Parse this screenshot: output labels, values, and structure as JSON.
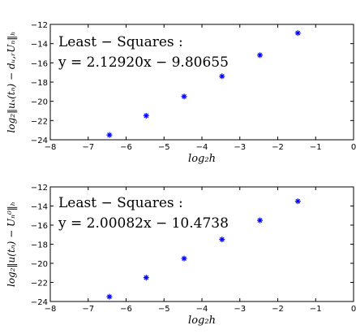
{
  "chart_data": [
    {
      "type": "scatter",
      "xlabel": "log₂h",
      "ylabel": "log₂‖uₓ(tₙ) − dᵤ,ᵣUₙ‖ₕ",
      "xlim": [
        -8,
        0
      ],
      "ylim": [
        -24,
        -12
      ],
      "x_ticks": [
        -8,
        -7,
        -6,
        -5,
        -4,
        -3,
        -2,
        -1,
        0
      ],
      "y_ticks": [
        -24,
        -22,
        -20,
        -18,
        -16,
        -14,
        -12
      ],
      "x_tick_labels": [
        "−8",
        "−7",
        "−6",
        "−5",
        "−4",
        "−3",
        "−2",
        "−1",
        "0"
      ],
      "y_tick_labels": [
        "−24",
        "−22",
        "−20",
        "−18",
        "−16",
        "−14",
        "−12"
      ],
      "grid": false,
      "marker_color": "#0000ff",
      "annotation": [
        "Least − Squares :",
        "y = 2.12920x − 9.80655"
      ],
      "series": [
        {
          "x": [
            -6.44,
            -5.47,
            -4.47,
            -3.47,
            -2.47,
            -1.47
          ],
          "y": [
            -23.5,
            -21.5,
            -19.5,
            -17.4,
            -15.2,
            -12.9
          ]
        }
      ]
    },
    {
      "type": "scatter",
      "xlabel": "log₂h",
      "ylabel": "log₂‖u(tₙ) − Uₙ⁰‖ₕ",
      "xlim": [
        -8,
        0
      ],
      "ylim": [
        -24,
        -12
      ],
      "x_ticks": [
        -8,
        -7,
        -6,
        -5,
        -4,
        -3,
        -2,
        -1,
        0
      ],
      "y_ticks": [
        -24,
        -22,
        -20,
        -18,
        -16,
        -14,
        -12
      ],
      "x_tick_labels": [
        "−8",
        "−7",
        "−6",
        "−5",
        "−4",
        "−3",
        "−2",
        "−1",
        "0"
      ],
      "y_tick_labels": [
        "−24",
        "−22",
        "−20",
        "−18",
        "−16",
        "−14",
        "−12"
      ],
      "grid": false,
      "marker_color": "#0000ff",
      "annotation": [
        "Least − Squares :",
        "y = 2.00082x − 10.4738"
      ],
      "series": [
        {
          "x": [
            -6.44,
            -5.47,
            -4.47,
            -3.47,
            -2.47,
            -1.47
          ],
          "y": [
            -23.5,
            -21.5,
            -19.5,
            -17.5,
            -15.5,
            -13.5
          ]
        }
      ]
    }
  ]
}
